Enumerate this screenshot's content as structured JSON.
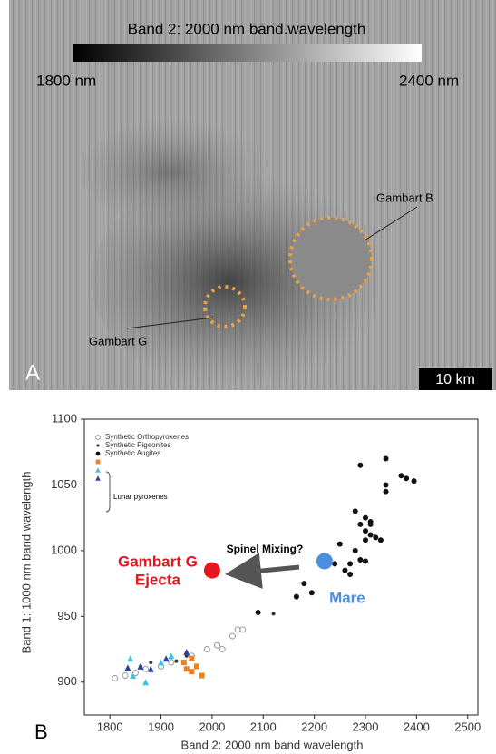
{
  "image_panel": {
    "panel_label": "A",
    "colorbar_title": "Band 2: 2000 nm band.wavelength",
    "colorbar_min": "1800 nm",
    "colorbar_max": "2400 nm",
    "crater_b": "Gambart B",
    "crater_g": "Gambart G",
    "scale_bar": "10 km"
  },
  "chart_data": {
    "type": "scatter",
    "panel_label": "B",
    "x_label": "Band 2: 2000 nm band wavelength",
    "y_label": "Band 1: 1000 nm band wavelength",
    "xlim": [
      1750,
      2520
    ],
    "ylim": [
      875,
      1100
    ],
    "xticks": [
      1800,
      1900,
      2000,
      2100,
      2200,
      2300,
      2400,
      2500
    ],
    "yticks": [
      900,
      950,
      1000,
      1050,
      1100
    ],
    "series": [
      {
        "name": "Synthetic Orthopyroxenes",
        "color": "#999999",
        "marker": "open-circle",
        "x": [
          1810,
          1830,
          1850,
          1870,
          1900,
          1920,
          1960,
          1990,
          2010,
          2020,
          2040,
          2050,
          2060
        ],
        "values": [
          903,
          905,
          907,
          910,
          912,
          915,
          920,
          925,
          928,
          925,
          935,
          940,
          940
        ]
      },
      {
        "name": "Synthetic Pigeonites",
        "color": "#333333",
        "marker": "small-dot",
        "x": [
          1860,
          1880,
          1930,
          1950,
          2120
        ],
        "values": [
          912,
          915,
          916,
          920,
          952
        ]
      },
      {
        "name": "Synthetic Augites",
        "color": "#111111",
        "marker": "dot",
        "x": [
          2290,
          2340,
          2370,
          2380,
          2395,
          2340,
          2340,
          2280,
          2290,
          2300,
          2310,
          2300,
          2310,
          2320,
          2330,
          2300,
          2280,
          2290,
          2300,
          2270,
          2260,
          2270,
          2180,
          2195,
          2165,
          2240,
          2250,
          2310,
          2090
        ],
        "values": [
          1065,
          1070,
          1057,
          1055,
          1053,
          1050,
          1045,
          1030,
          1020,
          1025,
          1022,
          1015,
          1012,
          1010,
          1008,
          1008,
          1000,
          993,
          992,
          990,
          985,
          982,
          975,
          968,
          965,
          990,
          1005,
          1020,
          953
        ]
      },
      {
        "color": "#f07f1f",
        "marker": "square",
        "x": [
          1945,
          1960,
          1970,
          1950,
          1980,
          1960
        ],
        "values": [
          915,
          918,
          912,
          910,
          905,
          908
        ]
      },
      {
        "color": "#3ec3e6",
        "marker": "triangle",
        "x": [
          1840,
          1845,
          1870,
          1900,
          1920
        ],
        "values": [
          918,
          905,
          900,
          915,
          920
        ]
      },
      {
        "color": "#2b3fa8",
        "marker": "triangle",
        "x": [
          1860,
          1880,
          1910,
          1950,
          1835
        ],
        "values": [
          912,
          910,
          918,
          923,
          911
        ]
      }
    ],
    "lunar_group_label": "Lunar pyroxenes",
    "highlights": [
      {
        "label_lines": [
          "Gambart G",
          "Ejecta"
        ],
        "x": 2000,
        "y": 985,
        "color": "#e8141c"
      },
      {
        "label_lines": [
          "Mare"
        ],
        "x": 2220,
        "y": 992,
        "color": "#4a8fe0"
      }
    ],
    "annotation": "Spinel Mixing?"
  }
}
